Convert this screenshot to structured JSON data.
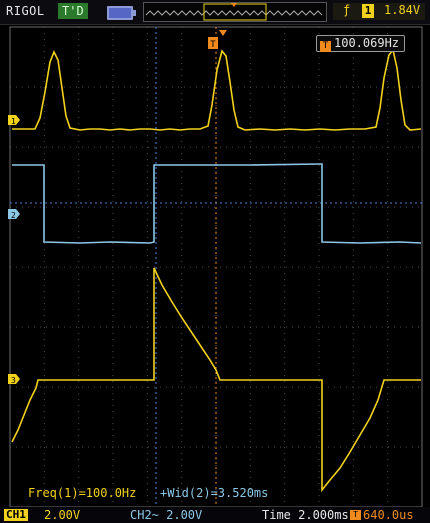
{
  "top_bar": {
    "brand": "RIGOL",
    "run_state": "T'D",
    "trigger_edge_icon": "rising-edge-icon",
    "trigger_source": "1",
    "trigger_level": "1.84V"
  },
  "freq_counter": {
    "icon": "T",
    "value": "100.069Hz"
  },
  "measurements": [
    {
      "label": "Freq(1)=100.0Hz"
    },
    {
      "label": "+Wid(2)=3.520ms"
    }
  ],
  "bottom_bar": {
    "ch1_label": "CH1",
    "ch1_scale": "2.00V",
    "ch2_scale": "CH2~  2.00V",
    "timebase": "Time 2.000ms",
    "trigger_pos_icon": "T",
    "trigger_position": "640.0us"
  },
  "channel_markers": [
    {
      "id": "1",
      "color": "#f2d21a"
    },
    {
      "id": "2",
      "color": "#8cc8e6"
    },
    {
      "id": "3",
      "color": "#f2d21a"
    }
  ],
  "colors": {
    "ch1": "#f2d21a",
    "ch2": "#8cc8e6",
    "math": "#f2d21a",
    "trigger": "#f08a1c",
    "grid": "#6c6c6c"
  }
}
